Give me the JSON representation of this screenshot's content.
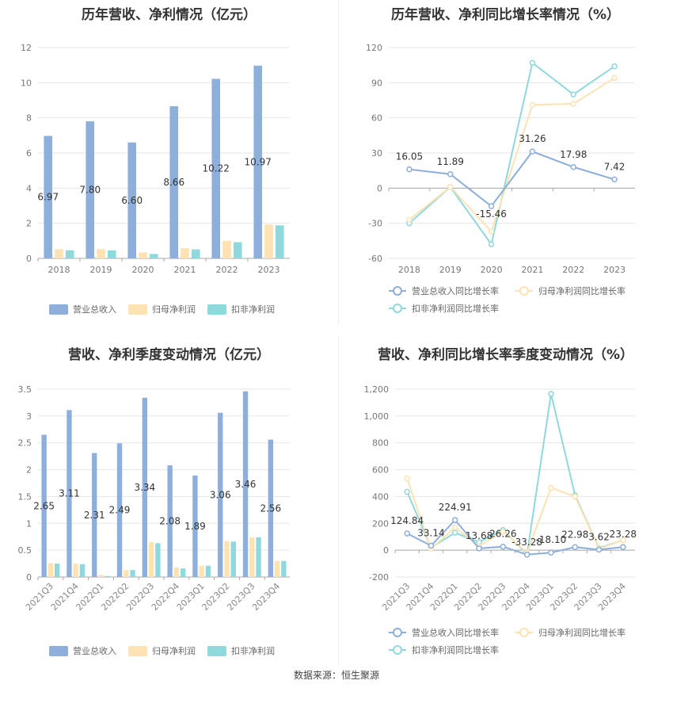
{
  "colors": {
    "revenue": "#8eaedc",
    "net_profit": "#fde3b4",
    "deducted_profit": "#8fd8dc",
    "revenue_line": "#8eaedc",
    "net_profit_line": "#fde3b4",
    "deducted_profit_line": "#8fd8dc"
  },
  "source": "数据来源：恒生聚源",
  "chart_data": [
    {
      "id": "annual-bar",
      "type": "bar",
      "title": "历年营收、净利情况（亿元）",
      "categories": [
        "2018",
        "2019",
        "2020",
        "2021",
        "2022",
        "2023"
      ],
      "ylim": [
        0,
        12
      ],
      "yticks": [
        "0",
        "2",
        "4",
        "6",
        "8",
        "10",
        "12"
      ],
      "series": [
        {
          "name": "营业总收入",
          "values": [
            6.97,
            7.8,
            6.6,
            8.66,
            10.22,
            10.97
          ],
          "labels": [
            "6.97",
            "7.80",
            "6.60",
            "8.66",
            "10.22",
            "10.97"
          ]
        },
        {
          "name": "归母净利润",
          "values": [
            0.52,
            0.53,
            0.34,
            0.58,
            1.0,
            1.93
          ]
        },
        {
          "name": "扣非净利润",
          "values": [
            0.46,
            0.46,
            0.25,
            0.51,
            0.92,
            1.88
          ]
        }
      ],
      "legend": "bottom"
    },
    {
      "id": "annual-line",
      "type": "line",
      "title": "历年营收、净利同比增长率情况（%）",
      "categories": [
        "2018",
        "2019",
        "2020",
        "2021",
        "2022",
        "2023"
      ],
      "ylim": [
        -60,
        120
      ],
      "yticks": [
        "-60",
        "-30",
        "0",
        "30",
        "60",
        "90",
        "120"
      ],
      "series": [
        {
          "name": "营业总收入同比增长率",
          "values": [
            16.05,
            11.89,
            -15.46,
            31.26,
            17.98,
            7.42
          ],
          "labels": [
            "16.05",
            "11.89",
            "-15.46",
            "31.26",
            "17.98",
            "7.42"
          ]
        },
        {
          "name": "归母净利润同比增长率",
          "values": [
            -27,
            1,
            -37,
            71,
            72,
            94
          ]
        },
        {
          "name": "扣非净利润同比增长率",
          "values": [
            -30,
            1,
            -48,
            107,
            80,
            104
          ]
        }
      ],
      "legend": "bottom"
    },
    {
      "id": "quarter-bar",
      "type": "bar",
      "title": "营收、净利季度变动情况（亿元）",
      "categories": [
        "2021Q3",
        "2021Q4",
        "2022Q1",
        "2022Q2",
        "2022Q3",
        "2022Q4",
        "2023Q1",
        "2023Q2",
        "2023Q3",
        "2023Q4"
      ],
      "ylim": [
        0,
        3.5
      ],
      "yticks": [
        "0",
        "0.5",
        "1",
        "1.5",
        "2",
        "2.5",
        "3",
        "3.5"
      ],
      "series": [
        {
          "name": "营业总收入",
          "values": [
            2.65,
            3.11,
            2.31,
            2.49,
            3.34,
            2.08,
            1.89,
            3.06,
            3.46,
            2.56
          ],
          "labels": [
            "2.65",
            "3.11",
            "2.31",
            "2.49",
            "3.34",
            "2.08",
            "1.89",
            "3.06",
            "3.46",
            "2.56"
          ]
        },
        {
          "name": "归母净利润",
          "values": [
            0.26,
            0.25,
            0.04,
            0.13,
            0.65,
            0.18,
            0.21,
            0.67,
            0.74,
            0.3
          ]
        },
        {
          "name": "扣非净利润",
          "values": [
            0.25,
            0.24,
            0.02,
            0.13,
            0.63,
            0.16,
            0.21,
            0.66,
            0.74,
            0.3
          ]
        }
      ],
      "legend": "bottom"
    },
    {
      "id": "quarter-line",
      "type": "line",
      "title": "营收、净利同比增长率季度变动情况（%）",
      "categories": [
        "2021Q3",
        "2021Q4",
        "2022Q1",
        "2022Q2",
        "2022Q3",
        "2022Q4",
        "2023Q1",
        "2023Q2",
        "2023Q3",
        "2023Q4"
      ],
      "ylim": [
        -200,
        1200
      ],
      "yticks": [
        "-200",
        "0",
        "200",
        "400",
        "600",
        "800",
        "1,000",
        "1,200"
      ],
      "series": [
        {
          "name": "营业总收入同比增长率",
          "values": [
            124.84,
            33.14,
            224.91,
            13.68,
            26.26,
            -33.28,
            -18.1,
            22.98,
            3.62,
            23.28
          ],
          "labels": [
            "124.84",
            "33.14",
            "224.91",
            "13.68",
            "26.26",
            "-33.28",
            "-18.10",
            "22.98",
            "3.62",
            "23.28"
          ]
        },
        {
          "name": "归母净利润同比增长率",
          "values": [
            535,
            10,
            170,
            30,
            140,
            -20,
            465,
            400,
            10,
            75
          ]
        },
        {
          "name": "扣非净利润同比增长率",
          "values": [
            435,
            20,
            130,
            60,
            150,
            -30,
            1165,
            410,
            15,
            75
          ]
        }
      ],
      "legend": "bottom"
    }
  ]
}
